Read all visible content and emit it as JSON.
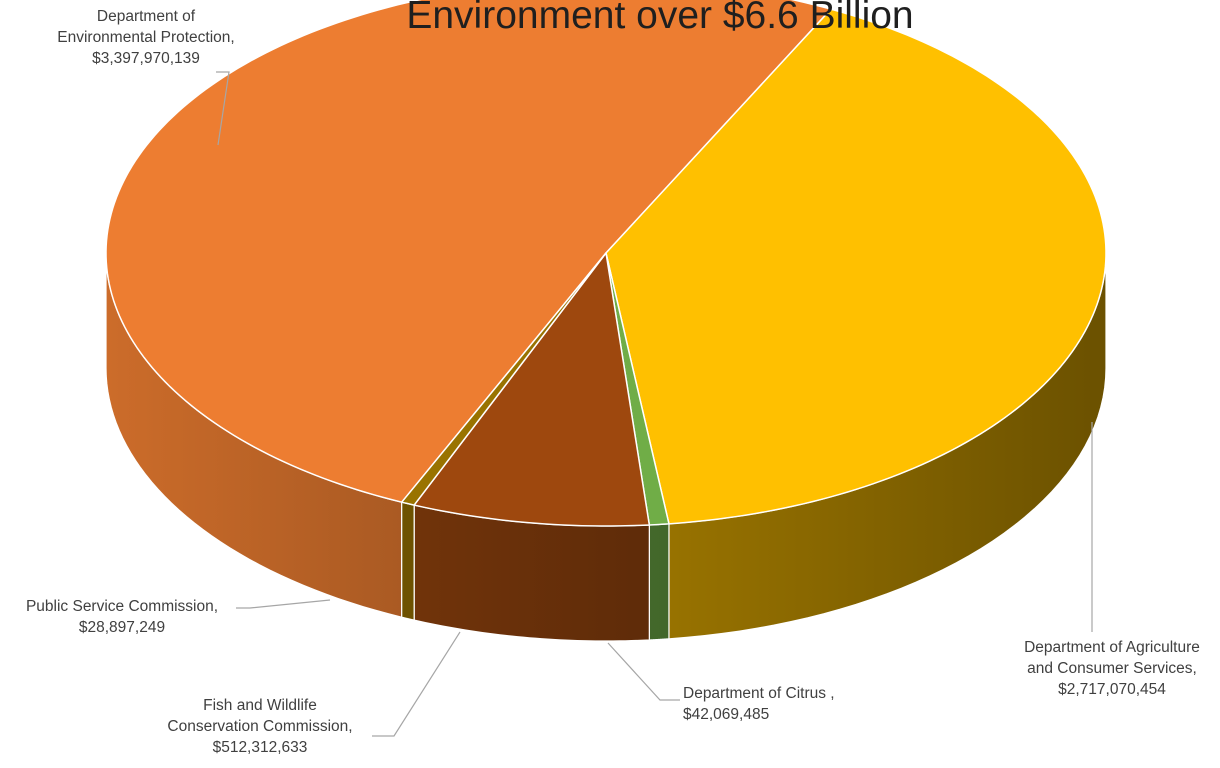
{
  "chart_data": {
    "type": "pie",
    "style": "3d",
    "title": "Environment over $6.6 Billion",
    "categories": [
      "Department of Environmental Protection",
      "Department of Agriculture and Consumer Services",
      "Department of Citrus",
      "Fish and Wildlife Conservation Commission",
      "Public Service Commission"
    ],
    "values": [
      3397970139,
      2717070454,
      42069485,
      512312633,
      28897249
    ],
    "slices": [
      {
        "category": "Department of Environmental Protection",
        "value": 3397970139,
        "label_lines": [
          "Department of",
          "Environmental Protection,",
          "$3,397,970,139"
        ],
        "color": "#ED7D31"
      },
      {
        "category": "Department of Agriculture and Consumer Services",
        "value": 2717070454,
        "label_lines": [
          "Department of Agriculture",
          "and Consumer Services,",
          "$2,717,070,454"
        ],
        "color": "#FFC000"
      },
      {
        "category": "Department of Citrus",
        "value": 42069485,
        "label_lines": [
          "Department of Citrus ,",
          "$42,069,485"
        ],
        "color": "#70AD47"
      },
      {
        "category": "Fish and Wildlife Conservation Commission",
        "value": 512312633,
        "label_lines": [
          "Fish and Wildlife",
          "Conservation Commission,",
          "$512,312,633"
        ],
        "color": "#9E480E"
      },
      {
        "category": "Public Service Commission",
        "value": 28897249,
        "label_lines": [
          "Public Service Commission,",
          "$28,897,249"
        ],
        "color": "#997300"
      }
    ],
    "legend": "none",
    "data_labels": "outside with leader lines"
  }
}
